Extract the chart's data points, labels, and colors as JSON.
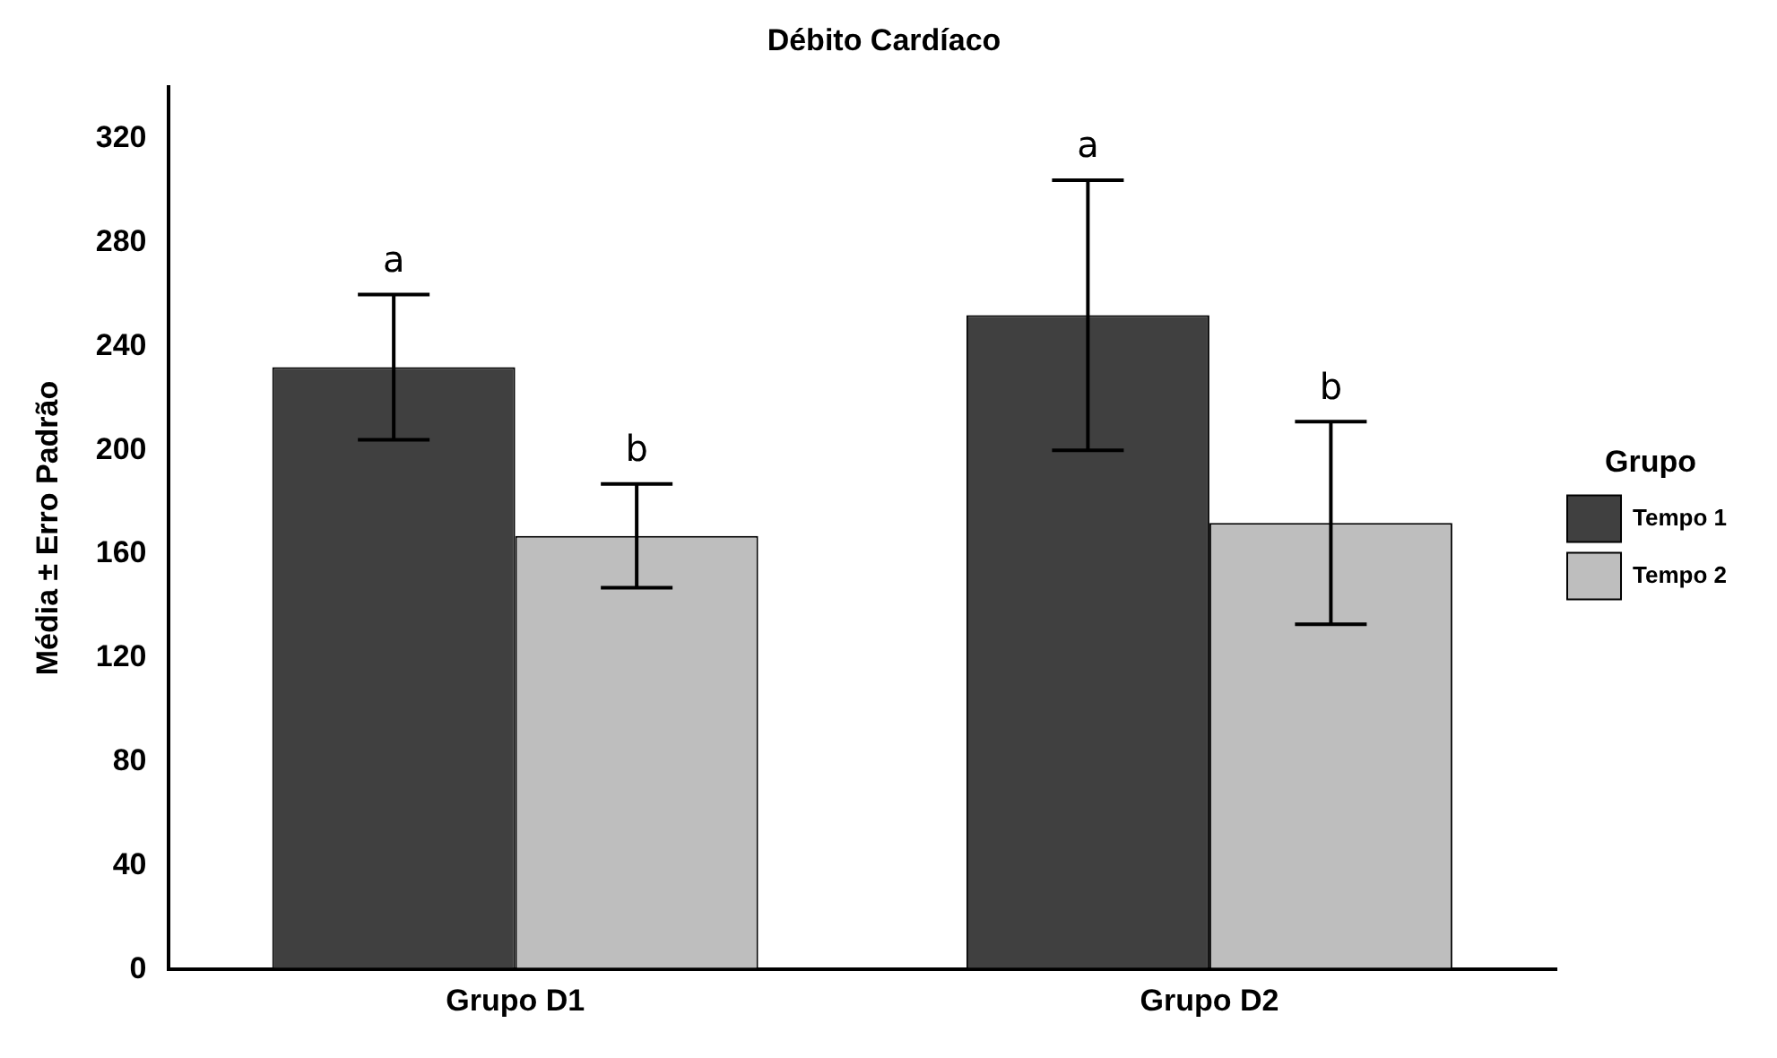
{
  "chart_data": {
    "type": "bar",
    "title": "Débito Cardíaco",
    "ylabel": "Média ± Erro Padrão",
    "legend_title": "Grupo",
    "legend": "right",
    "categories": [
      "Grupo D1",
      "Grupo D2"
    ],
    "series": [
      {
        "name": "Tempo 1",
        "color": "#404040",
        "values": [
          232,
          252
        ],
        "errors": [
          28,
          52
        ]
      },
      {
        "name": "Tempo 2",
        "color": "#bebebe",
        "values": [
          167,
          172
        ],
        "errors": [
          20,
          39
        ]
      }
    ],
    "ylim": [
      0,
      340
    ],
    "yticks": [
      0,
      40,
      80,
      120,
      160,
      200,
      240,
      280,
      320
    ],
    "grid": false,
    "annotations": [
      "a",
      "b",
      "a",
      "b"
    ]
  }
}
